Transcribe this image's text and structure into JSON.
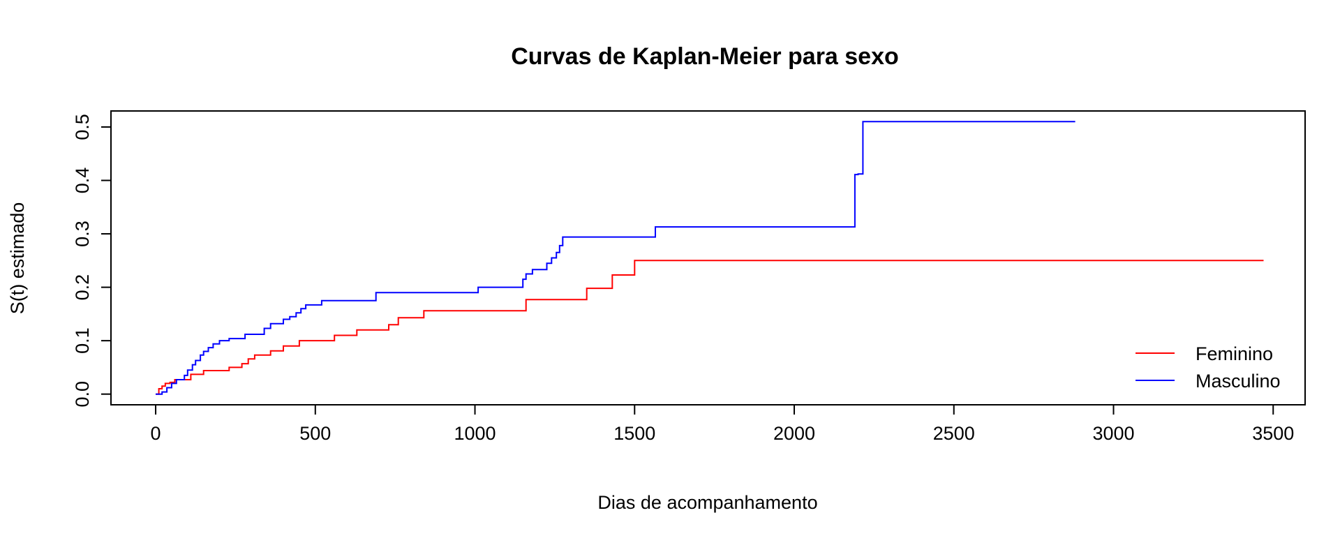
{
  "chart_data": {
    "type": "line",
    "step": true,
    "title": "Curvas de Kaplan-Meier para sexo",
    "xlabel": "Dias de acompanhamento",
    "ylabel": "S(t) estimado",
    "xlim": [
      -140,
      3600
    ],
    "ylim": [
      -0.02,
      0.53
    ],
    "xticks": [
      0,
      500,
      1000,
      1500,
      2000,
      2500,
      3000,
      3500
    ],
    "yticks": [
      0.0,
      0.1,
      0.2,
      0.3,
      0.4,
      0.5
    ],
    "xtick_labels": [
      "0",
      "500",
      "1000",
      "1500",
      "2000",
      "2500",
      "3000",
      "3500"
    ],
    "ytick_labels": [
      "0.0",
      "0.1",
      "0.2",
      "0.3",
      "0.4",
      "0.5"
    ],
    "grid": false,
    "legend_position": "bottom-right",
    "series": [
      {
        "name": "Feminino",
        "color": "#ff0000",
        "x": [
          0,
          10,
          20,
          30,
          45,
          60,
          110,
          150,
          230,
          270,
          290,
          310,
          360,
          400,
          450,
          560,
          630,
          730,
          760,
          840,
          1160,
          1350,
          1430,
          1500,
          3470
        ],
        "y": [
          0.0,
          0.01,
          0.015,
          0.02,
          0.022,
          0.027,
          0.037,
          0.044,
          0.05,
          0.057,
          0.066,
          0.073,
          0.081,
          0.09,
          0.1,
          0.11,
          0.12,
          0.13,
          0.143,
          0.156,
          0.177,
          0.198,
          0.223,
          0.25,
          0.25
        ]
      },
      {
        "name": "Masculino",
        "color": "#0000ff",
        "x": [
          0,
          20,
          35,
          50,
          65,
          90,
          100,
          115,
          125,
          140,
          150,
          165,
          180,
          200,
          230,
          280,
          340,
          360,
          400,
          420,
          440,
          455,
          470,
          520,
          690,
          1010,
          1150,
          1160,
          1180,
          1225,
          1240,
          1255,
          1265,
          1275,
          1565,
          2190,
          2200,
          2215,
          2880
        ],
        "y": [
          0.0,
          0.004,
          0.012,
          0.02,
          0.027,
          0.035,
          0.045,
          0.055,
          0.063,
          0.073,
          0.08,
          0.087,
          0.094,
          0.1,
          0.104,
          0.112,
          0.123,
          0.132,
          0.14,
          0.145,
          0.152,
          0.16,
          0.167,
          0.175,
          0.19,
          0.2,
          0.215,
          0.225,
          0.233,
          0.245,
          0.255,
          0.265,
          0.278,
          0.294,
          0.313,
          0.411,
          0.412,
          0.51,
          0.51
        ]
      }
    ]
  }
}
